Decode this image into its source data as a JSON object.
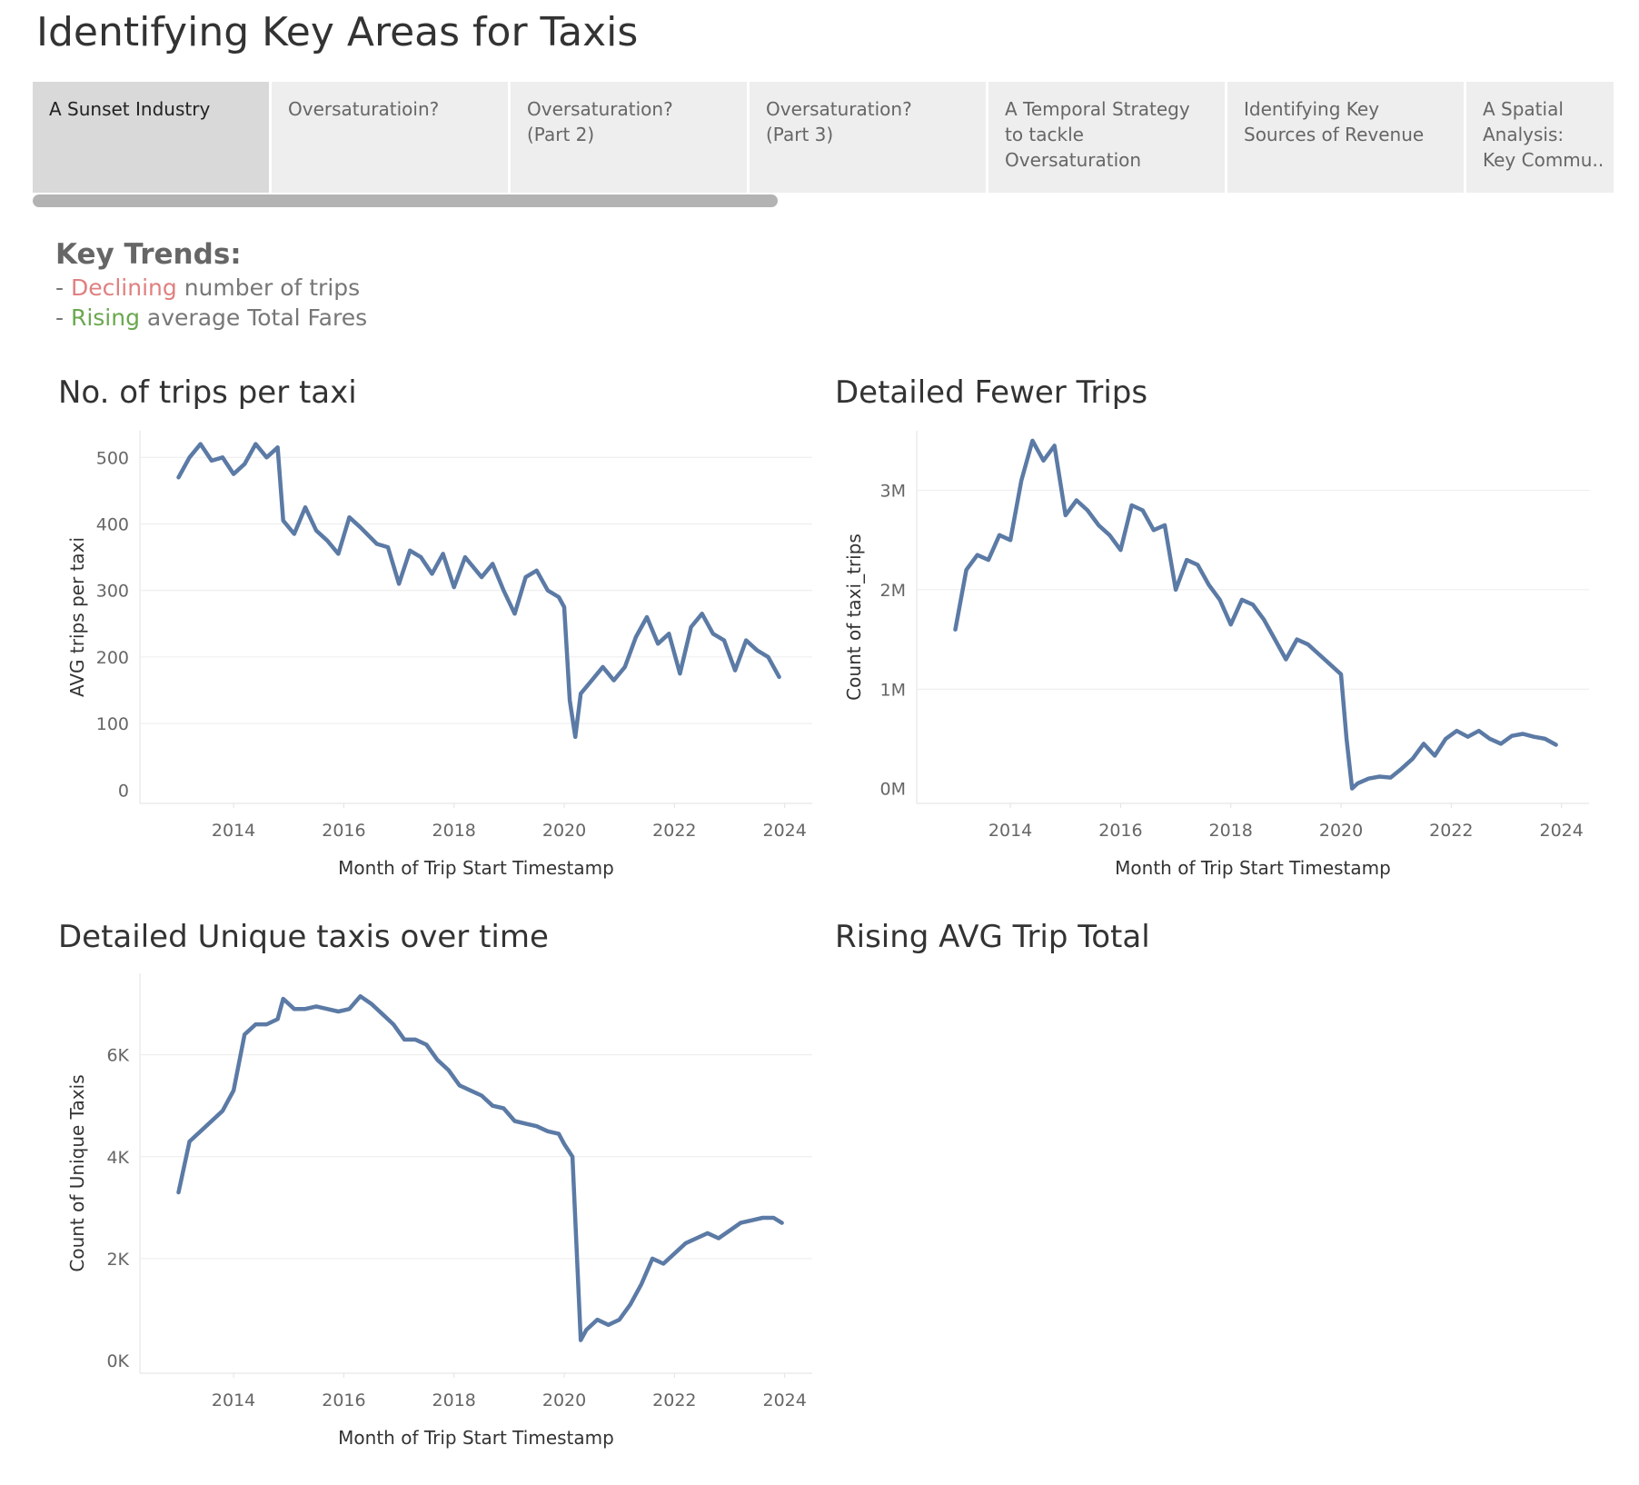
{
  "dashboard": {
    "title": "Identifying Key Areas for Taxis"
  },
  "tabs": [
    {
      "label": "A Sunset Industry",
      "active": true
    },
    {
      "label": "Oversaturatioin?",
      "active": false
    },
    {
      "label": "Oversaturation?\n(Part 2)",
      "active": false
    },
    {
      "label": "Oversaturation?\n(Part 3)",
      "active": false
    },
    {
      "label": "A Temporal Strategy\nto tackle\nOversaturation",
      "active": false
    },
    {
      "label": "Identifying Key\nSources of Revenue",
      "active": false
    },
    {
      "label": "A Spatial\nAnalysis:\nKey Commu..",
      "active": false
    }
  ],
  "key_trends": {
    "heading": "Key Trends:",
    "line1": {
      "prefix": "- ",
      "highlight": "Declining",
      "rest": " number of trips"
    },
    "line2": {
      "prefix": "- ",
      "highlight": "Rising",
      "rest": " average Total Fares"
    }
  },
  "colors": {
    "series": "#5b7aa5",
    "declining": "#e08080",
    "rising": "#6aa84f"
  },
  "panel_titles": {
    "trips_per_taxi": "No. of trips per taxi",
    "fewer_trips": "Detailed Fewer Trips",
    "unique_taxis": "Detailed Unique taxis over time",
    "avg_trip_total": "Rising AVG Trip Total"
  },
  "chart_data": [
    {
      "type": "line",
      "title": "No. of trips per taxi",
      "xlabel": "Month of Trip Start Timestamp",
      "ylabel": "AVG trips per taxi",
      "xlim": [
        2012.3,
        2024.5
      ],
      "xticks": [
        2014,
        2016,
        2018,
        2020,
        2022,
        2024
      ],
      "ylim": [
        -20,
        540
      ],
      "yticks": [
        0,
        100,
        200,
        300,
        400,
        500
      ],
      "ytick_labels": [
        "0",
        "100",
        "200",
        "300",
        "400",
        "500"
      ],
      "grid": true,
      "x": [
        2013.0,
        2013.2,
        2013.4,
        2013.6,
        2013.8,
        2014.0,
        2014.2,
        2014.4,
        2014.6,
        2014.8,
        2014.9,
        2015.1,
        2015.3,
        2015.5,
        2015.7,
        2015.9,
        2016.1,
        2016.3,
        2016.6,
        2016.8,
        2017.0,
        2017.2,
        2017.4,
        2017.6,
        2017.8,
        2018.0,
        2018.2,
        2018.5,
        2018.7,
        2018.9,
        2019.1,
        2019.3,
        2019.5,
        2019.7,
        2019.9,
        2020.0,
        2020.1,
        2020.2,
        2020.3,
        2020.5,
        2020.7,
        2020.9,
        2021.1,
        2021.3,
        2021.5,
        2021.7,
        2021.9,
        2022.1,
        2022.3,
        2022.5,
        2022.7,
        2022.9,
        2023.1,
        2023.3,
        2023.5,
        2023.7,
        2023.9
      ],
      "series": [
        {
          "values": [
            470,
            500,
            520,
            495,
            500,
            475,
            490,
            520,
            500,
            515,
            405,
            385,
            425,
            390,
            375,
            355,
            410,
            395,
            370,
            365,
            310,
            360,
            350,
            325,
            355,
            305,
            350,
            320,
            340,
            300,
            265,
            320,
            330,
            300,
            290,
            275,
            135,
            80,
            145,
            165,
            185,
            165,
            185,
            230,
            260,
            220,
            235,
            175,
            245,
            265,
            235,
            225,
            180,
            225,
            210,
            200,
            170
          ]
        }
      ]
    },
    {
      "type": "line",
      "title": "Detailed Fewer Trips",
      "xlabel": "Month of Trip Start Timestamp",
      "ylabel": "Count of taxi_trips",
      "xlim": [
        2012.3,
        2024.5
      ],
      "xticks": [
        2014,
        2016,
        2018,
        2020,
        2022,
        2024
      ],
      "ylim": [
        -150000,
        3600000
      ],
      "yticks": [
        0,
        1000000,
        2000000,
        3000000
      ],
      "ytick_labels": [
        "0M",
        "1M",
        "2M",
        "3M"
      ],
      "grid": true,
      "x": [
        2013.0,
        2013.2,
        2013.4,
        2013.6,
        2013.8,
        2014.0,
        2014.2,
        2014.4,
        2014.6,
        2014.8,
        2015.0,
        2015.2,
        2015.4,
        2015.6,
        2015.8,
        2016.0,
        2016.2,
        2016.4,
        2016.6,
        2016.8,
        2017.0,
        2017.2,
        2017.4,
        2017.6,
        2017.8,
        2018.0,
        2018.2,
        2018.4,
        2018.6,
        2018.8,
        2019.0,
        2019.2,
        2019.4,
        2019.6,
        2019.8,
        2020.0,
        2020.1,
        2020.2,
        2020.3,
        2020.5,
        2020.7,
        2020.9,
        2021.1,
        2021.3,
        2021.5,
        2021.7,
        2021.9,
        2022.1,
        2022.3,
        2022.5,
        2022.7,
        2022.9,
        2023.1,
        2023.3,
        2023.5,
        2023.7,
        2023.9
      ],
      "series": [
        {
          "values": [
            1600000,
            2200000,
            2350000,
            2300000,
            2550000,
            2500000,
            3100000,
            3500000,
            3300000,
            3450000,
            2750000,
            2900000,
            2800000,
            2650000,
            2550000,
            2400000,
            2850000,
            2800000,
            2600000,
            2650000,
            2000000,
            2300000,
            2250000,
            2050000,
            1900000,
            1650000,
            1900000,
            1850000,
            1700000,
            1500000,
            1300000,
            1500000,
            1450000,
            1350000,
            1250000,
            1150000,
            500000,
            0,
            50000,
            100000,
            120000,
            110000,
            200000,
            300000,
            450000,
            330000,
            500000,
            580000,
            520000,
            580000,
            500000,
            450000,
            530000,
            550000,
            520000,
            500000,
            440000
          ]
        }
      ]
    },
    {
      "type": "line",
      "title": "Detailed Unique taxis over time",
      "xlabel": "Month of Trip Start Timestamp",
      "ylabel": "Count of Unique Taxis",
      "xlim": [
        2012.3,
        2024.5
      ],
      "xticks": [
        2014,
        2016,
        2018,
        2020,
        2022,
        2024
      ],
      "ylim": [
        -250,
        7600
      ],
      "yticks": [
        0,
        2000,
        4000,
        6000
      ],
      "ytick_labels": [
        "0K",
        "2K",
        "4K",
        "6K"
      ],
      "grid": true,
      "x": [
        2013.0,
        2013.2,
        2013.5,
        2013.8,
        2014.0,
        2014.2,
        2014.4,
        2014.6,
        2014.8,
        2014.9,
        2015.1,
        2015.3,
        2015.5,
        2015.7,
        2015.9,
        2016.1,
        2016.3,
        2016.5,
        2016.7,
        2016.9,
        2017.1,
        2017.3,
        2017.5,
        2017.7,
        2017.9,
        2018.1,
        2018.3,
        2018.5,
        2018.7,
        2018.9,
        2019.1,
        2019.3,
        2019.5,
        2019.7,
        2019.9,
        2020.0,
        2020.15,
        2020.3,
        2020.4,
        2020.6,
        2020.8,
        2021.0,
        2021.2,
        2021.4,
        2021.6,
        2021.8,
        2022.0,
        2022.2,
        2022.4,
        2022.6,
        2022.8,
        2023.0,
        2023.2,
        2023.4,
        2023.6,
        2023.8,
        2023.95
      ],
      "series": [
        {
          "values": [
            3300,
            4300,
            4600,
            4900,
            5300,
            6400,
            6600,
            6600,
            6700,
            7100,
            6900,
            6900,
            6950,
            6900,
            6850,
            6900,
            7150,
            7000,
            6800,
            6600,
            6300,
            6300,
            6200,
            5900,
            5700,
            5400,
            5300,
            5200,
            5000,
            4950,
            4700,
            4650,
            4600,
            4500,
            4450,
            4250,
            4000,
            400,
            600,
            800,
            700,
            800,
            1100,
            1500,
            2000,
            1900,
            2100,
            2300,
            2400,
            2500,
            2400,
            2550,
            2700,
            2750,
            2800,
            2800,
            2700
          ]
        }
      ]
    }
  ]
}
